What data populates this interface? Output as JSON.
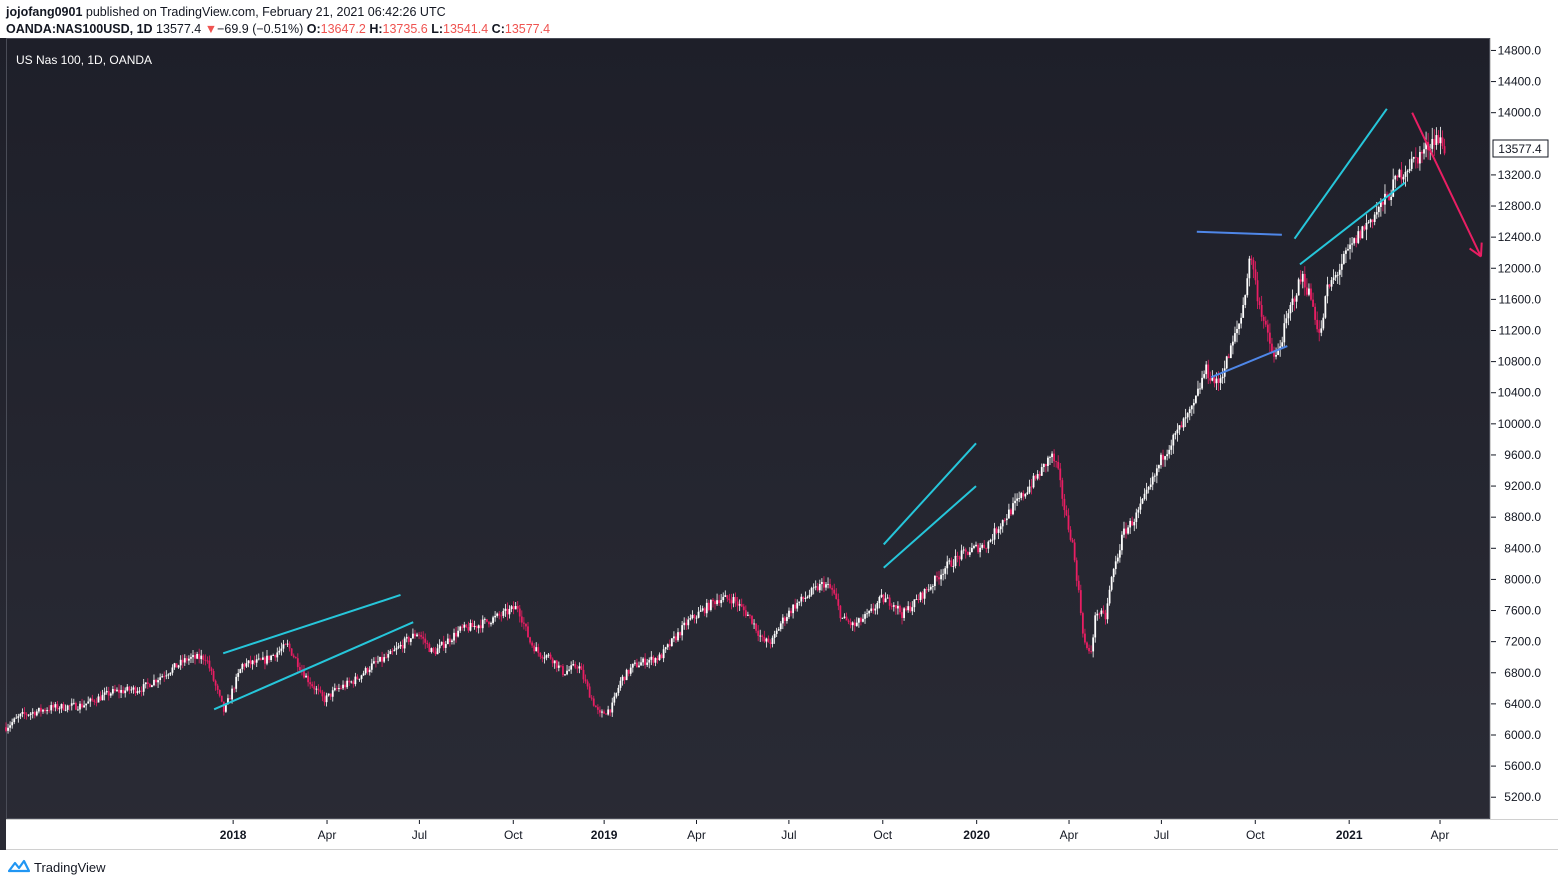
{
  "header": {
    "author": "jojofang0901",
    "published_text": "published on TradingView.com, February 21, 2021 06:42:26 UTC",
    "symbol": "OANDA:NAS100USD, 1D",
    "last_price": "13577.4",
    "change_arrow": "▼",
    "change": "−69.9 (−0.51%)",
    "o_label": "O:",
    "o_value": "13647.2",
    "h_label": "H:",
    "h_value": "13735.6",
    "l_label": "L:",
    "l_value": "13541.4",
    "c_label": "C:",
    "c_value": "13577.4"
  },
  "footer": {
    "brand": "TradingView"
  },
  "colors": {
    "background_top": "#1e1f29",
    "background_bottom": "#2a2b35",
    "candle_up": "#ffffff",
    "candle_down": "#e91e63",
    "trendline": "#26c6da",
    "trendline_alt": "#4f87e8",
    "arrow": "#e91e63"
  },
  "chart_data": {
    "type": "candlestick",
    "title": "US Nas 100, 1D, OANDA",
    "current_price_label": "13577.4",
    "y_ticks": [
      14800,
      14400,
      14000,
      13200,
      12800,
      12400,
      12000,
      11600,
      11200,
      10800,
      10400,
      10000,
      9600,
      9200,
      8800,
      8400,
      8000,
      7600,
      7200,
      6800,
      6400,
      6000,
      5600,
      5200
    ],
    "ylim": [
      4920,
      14960
    ],
    "x_ticks": [
      {
        "label": "2018",
        "bold": true,
        "t": 7.5
      },
      {
        "label": "Apr",
        "bold": false,
        "t": 10.6
      },
      {
        "label": "Jul",
        "bold": false,
        "t": 13.65
      },
      {
        "label": "Oct",
        "bold": false,
        "t": 16.75
      },
      {
        "label": "2019",
        "bold": true,
        "t": 19.75
      },
      {
        "label": "Apr",
        "bold": false,
        "t": 22.8
      },
      {
        "label": "Jul",
        "bold": false,
        "t": 25.85
      },
      {
        "label": "Oct",
        "bold": false,
        "t": 28.95
      },
      {
        "label": "2020",
        "bold": true,
        "t": 32.05
      },
      {
        "label": "Apr",
        "bold": false,
        "t": 35.1
      },
      {
        "label": "Jul",
        "bold": false,
        "t": 38.15
      },
      {
        "label": "Oct",
        "bold": false,
        "t": 41.25
      },
      {
        "label": "2021",
        "bold": true,
        "t": 44.35
      },
      {
        "label": "Apr",
        "bold": false,
        "t": 47.35
      }
    ],
    "price_path": [
      [
        0,
        6100
      ],
      [
        0.5,
        6250
      ],
      [
        1.5,
        6350
      ],
      [
        2.5,
        6380
      ],
      [
        3.5,
        6550
      ],
      [
        4.5,
        6600
      ],
      [
        6.0,
        6980
      ],
      [
        6.6,
        7000
      ],
      [
        7.2,
        6300
      ],
      [
        7.8,
        6900
      ],
      [
        8.5,
        6950
      ],
      [
        9.3,
        7150
      ],
      [
        9.9,
        6750
      ],
      [
        10.5,
        6450
      ],
      [
        10.9,
        6580
      ],
      [
        11.5,
        6700
      ],
      [
        12.1,
        6900
      ],
      [
        12.6,
        7000
      ],
      [
        13.2,
        7200
      ],
      [
        13.6,
        7320
      ],
      [
        14.1,
        7050
      ],
      [
        14.6,
        7220
      ],
      [
        15.0,
        7350
      ],
      [
        15.5,
        7400
      ],
      [
        16.0,
        7480
      ],
      [
        16.4,
        7550
      ],
      [
        16.9,
        7650
      ],
      [
        17.3,
        7200
      ],
      [
        17.6,
        7050
      ],
      [
        18.0,
        7000
      ],
      [
        18.4,
        6800
      ],
      [
        18.9,
        6900
      ],
      [
        19.3,
        6500
      ],
      [
        19.6,
        6250
      ],
      [
        20.0,
        6350
      ],
      [
        20.3,
        6700
      ],
      [
        20.7,
        6880
      ],
      [
        21.1,
        6950
      ],
      [
        21.6,
        7000
      ],
      [
        22.0,
        7200
      ],
      [
        22.5,
        7450
      ],
      [
        23.0,
        7600
      ],
      [
        23.5,
        7750
      ],
      [
        24.0,
        7750
      ],
      [
        24.6,
        7500
      ],
      [
        25.0,
        7200
      ],
      [
        25.3,
        7200
      ],
      [
        25.6,
        7450
      ],
      [
        26.0,
        7650
      ],
      [
        26.5,
        7800
      ],
      [
        27.0,
        7950
      ],
      [
        27.3,
        7850
      ],
      [
        27.6,
        7500
      ],
      [
        28.0,
        7400
      ],
      [
        28.5,
        7550
      ],
      [
        28.9,
        7750
      ],
      [
        29.3,
        7700
      ],
      [
        29.6,
        7550
      ],
      [
        30.0,
        7700
      ],
      [
        30.6,
        7950
      ],
      [
        31.0,
        8150
      ],
      [
        31.5,
        8300
      ],
      [
        32.0,
        8400
      ],
      [
        32.4,
        8450
      ],
      [
        32.8,
        8700
      ],
      [
        33.3,
        8950
      ],
      [
        33.8,
        9200
      ],
      [
        34.2,
        9400
      ],
      [
        34.5,
        9600
      ],
      [
        34.7,
        9450
      ],
      [
        35.0,
        8800
      ],
      [
        35.2,
        8500
      ],
      [
        35.4,
        7900
      ],
      [
        35.6,
        7200
      ],
      [
        35.8,
        7000
      ],
      [
        36.0,
        7600
      ],
      [
        36.3,
        7500
      ],
      [
        36.5,
        8000
      ],
      [
        36.9,
        8600
      ],
      [
        37.3,
        8800
      ],
      [
        37.8,
        9200
      ],
      [
        38.2,
        9600
      ],
      [
        38.7,
        9900
      ],
      [
        39.2,
        10200
      ],
      [
        39.6,
        10700
      ],
      [
        40.0,
        10500
      ],
      [
        40.4,
        10900
      ],
      [
        40.8,
        11400
      ],
      [
        41.1,
        12200
      ],
      [
        41.3,
        11700
      ],
      [
        41.6,
        11200
      ],
      [
        41.9,
        10800
      ],
      [
        42.2,
        11200
      ],
      [
        42.5,
        11600
      ],
      [
        42.8,
        11900
      ],
      [
        43.1,
        11600
      ],
      [
        43.4,
        11100
      ],
      [
        43.6,
        11700
      ],
      [
        43.9,
        11900
      ],
      [
        44.3,
        12200
      ],
      [
        44.8,
        12500
      ],
      [
        45.2,
        12700
      ],
      [
        45.6,
        12900
      ],
      [
        46.0,
        13200
      ],
      [
        46.4,
        13350
      ],
      [
        46.8,
        13500
      ],
      [
        47.2,
        13700
      ],
      [
        47.5,
        13550
      ]
    ],
    "annotations": [
      {
        "name": "channel-2018-upper",
        "color": "trendline",
        "from": [
          12.0,
          7050
        ],
        "to": [
          21.8,
          7800
        ]
      },
      {
        "name": "channel-2018-lower",
        "color": "trendline",
        "from": [
          11.5,
          6330
        ],
        "to": [
          22.5,
          7450
        ]
      },
      {
        "name": "wedge-2020-upper",
        "color": "trendline",
        "from": [
          48.5,
          8450
        ],
        "to": [
          53.6,
          9750
        ]
      },
      {
        "name": "wedge-2020-lower",
        "color": "trendline",
        "from": [
          48.5,
          8150
        ],
        "to": [
          53.6,
          9200
        ]
      },
      {
        "name": "triangle-top",
        "color": "trendline_alt",
        "from": [
          65.8,
          12470
        ],
        "to": [
          70.5,
          12430
        ]
      },
      {
        "name": "triangle-bottom",
        "color": "trendline_alt",
        "from": [
          66.6,
          10600
        ],
        "to": [
          70.8,
          11000
        ]
      },
      {
        "name": "wedge-2021-upper",
        "color": "trendline",
        "from": [
          71.2,
          12380
        ],
        "to": [
          76.3,
          14050
        ]
      },
      {
        "name": "wedge-2021-lower",
        "color": "trendline",
        "from": [
          71.5,
          12050
        ],
        "to": [
          77.3,
          13100
        ]
      }
    ],
    "forecast_arrow": {
      "from": [
        77.7,
        14000
      ],
      "to": [
        81.5,
        12150
      ]
    }
  }
}
